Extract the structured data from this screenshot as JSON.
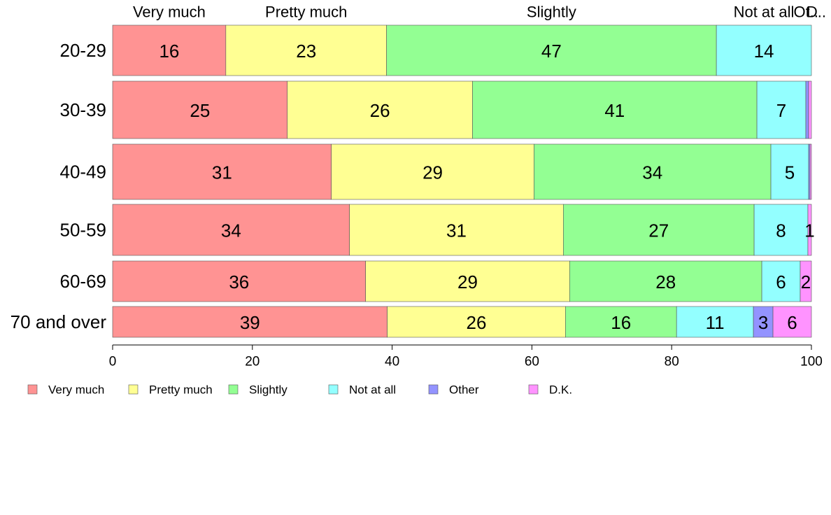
{
  "chart_data": {
    "type": "bar",
    "orientation": "horizontal",
    "stacked": true,
    "categories": [
      "20-29",
      "30-39",
      "40-49",
      "50-59",
      "60-69",
      "70 and over"
    ],
    "series": [
      {
        "name": "Very much",
        "color": "#ff9393",
        "values": [
          16.2,
          25.0,
          31.3,
          33.9,
          36.2,
          39.3
        ]
      },
      {
        "name": "Pretty much",
        "color": "#ffff93",
        "values": [
          23.0,
          26.5,
          29.0,
          30.6,
          29.2,
          25.5
        ]
      },
      {
        "name": "Slightly",
        "color": "#93ff93",
        "values": [
          47.2,
          40.7,
          33.9,
          27.3,
          27.5,
          15.9
        ]
      },
      {
        "name": "Not at all",
        "color": "#93ffff",
        "values": [
          13.6,
          7.0,
          5.4,
          7.7,
          5.5,
          11.0
        ]
      },
      {
        "name": "Other",
        "color": "#9393ff",
        "values": [
          0.0,
          0.4,
          0.2,
          0.0,
          0.0,
          2.8
        ]
      },
      {
        "name": "D.K.",
        "color": "#ff93ff",
        "values": [
          0.0,
          0.4,
          0.2,
          0.5,
          1.6,
          5.5
        ]
      }
    ],
    "bar_labels": [
      [
        "16",
        "23",
        "47",
        "14",
        "",
        ""
      ],
      [
        "25",
        "26",
        "41",
        "7",
        "",
        ""
      ],
      [
        "31",
        "29",
        "34",
        "5",
        "",
        ""
      ],
      [
        "34",
        "31",
        "27",
        "8",
        "",
        "1"
      ],
      [
        "36",
        "29",
        "28",
        "6",
        "",
        "2"
      ],
      [
        "39",
        "26",
        "16",
        "11",
        "3",
        "6"
      ]
    ],
    "top_labels": [
      "Very much",
      "Pretty much",
      "Slightly",
      "Not at all",
      "Ot..",
      "D.."
    ],
    "xlim": [
      0,
      100
    ],
    "xticks": [
      0,
      20,
      40,
      60,
      80,
      100
    ],
    "legend_position": "bottom",
    "grid": false
  }
}
